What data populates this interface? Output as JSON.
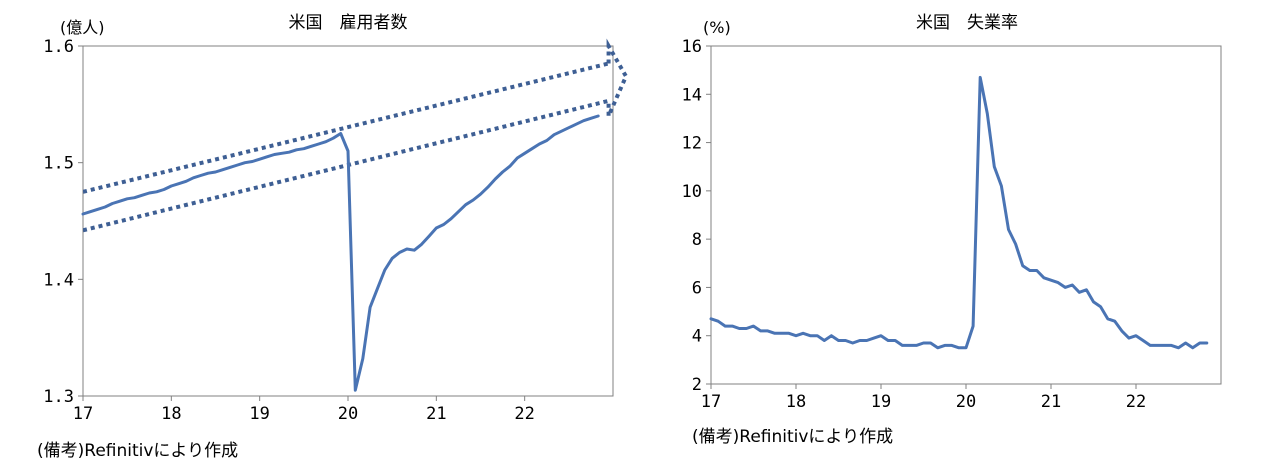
{
  "chart_data": [
    {
      "type": "line",
      "title": "米国　雇用者数",
      "unit_label": "(億人)",
      "source": "(備考)Refinitivにより作成",
      "xlabel": "",
      "ylabel": "(億人)",
      "ylim": [
        1.3,
        1.6
      ],
      "xlim": [
        17,
        23.0
      ],
      "y_ticks": [
        "1.3",
        "1.4",
        "1.5",
        "1.6"
      ],
      "x_ticks": [
        "17",
        "18",
        "19",
        "20",
        "21",
        "22"
      ],
      "series": [
        {
          "name": "雇用者数",
          "color": "#4a74b4",
          "x": [
            17.0,
            17.083,
            17.167,
            17.25,
            17.333,
            17.417,
            17.5,
            17.583,
            17.667,
            17.75,
            17.833,
            17.917,
            18.0,
            18.083,
            18.167,
            18.25,
            18.333,
            18.417,
            18.5,
            18.583,
            18.667,
            18.75,
            18.833,
            18.917,
            19.0,
            19.083,
            19.167,
            19.25,
            19.333,
            19.417,
            19.5,
            19.583,
            19.667,
            19.75,
            19.833,
            19.917,
            20.0,
            20.083,
            20.167,
            20.25,
            20.333,
            20.417,
            20.5,
            20.583,
            20.667,
            20.75,
            20.833,
            20.917,
            21.0,
            21.083,
            21.167,
            21.25,
            21.333,
            21.417,
            21.5,
            21.583,
            21.667,
            21.75,
            21.833,
            21.917,
            22.0,
            22.083,
            22.167,
            22.25,
            22.333,
            22.417,
            22.5,
            22.583,
            22.667,
            22.75,
            22.833
          ],
          "values": [
            1.456,
            1.458,
            1.46,
            1.462,
            1.465,
            1.467,
            1.469,
            1.47,
            1.472,
            1.474,
            1.475,
            1.477,
            1.48,
            1.482,
            1.484,
            1.487,
            1.489,
            1.491,
            1.492,
            1.494,
            1.496,
            1.498,
            1.5,
            1.501,
            1.503,
            1.505,
            1.507,
            1.508,
            1.509,
            1.511,
            1.512,
            1.514,
            1.516,
            1.518,
            1.521,
            1.525,
            1.51,
            1.305,
            1.332,
            1.376,
            1.392,
            1.408,
            1.418,
            1.423,
            1.426,
            1.425,
            1.43,
            1.437,
            1.444,
            1.447,
            1.452,
            1.458,
            1.464,
            1.468,
            1.473,
            1.479,
            1.486,
            1.492,
            1.497,
            1.504,
            1.508,
            1.512,
            1.516,
            1.519,
            1.524,
            1.527,
            1.53,
            1.533,
            1.536,
            1.538,
            1.54
          ]
        }
      ],
      "annotation": "dotted trend band (pre-COVID trend extrapolation)"
    },
    {
      "type": "line",
      "title": "米国　失業率",
      "unit_label": "(%)",
      "source": "(備考)Refinitivにより作成",
      "xlabel": "",
      "ylabel": "(%)",
      "ylim": [
        2,
        16
      ],
      "xlim": [
        17,
        23.0
      ],
      "y_ticks": [
        "2",
        "4",
        "6",
        "8",
        "10",
        "12",
        "14",
        "16"
      ],
      "x_ticks": [
        "17",
        "18",
        "19",
        "20",
        "21",
        "22"
      ],
      "series": [
        {
          "name": "失業率",
          "color": "#4a74b4",
          "x": [
            17.0,
            17.083,
            17.167,
            17.25,
            17.333,
            17.417,
            17.5,
            17.583,
            17.667,
            17.75,
            17.833,
            17.917,
            18.0,
            18.083,
            18.167,
            18.25,
            18.333,
            18.417,
            18.5,
            18.583,
            18.667,
            18.75,
            18.833,
            18.917,
            19.0,
            19.083,
            19.167,
            19.25,
            19.333,
            19.417,
            19.5,
            19.583,
            19.667,
            19.75,
            19.833,
            19.917,
            20.0,
            20.083,
            20.167,
            20.25,
            20.333,
            20.417,
            20.5,
            20.583,
            20.667,
            20.75,
            20.833,
            20.917,
            21.0,
            21.083,
            21.167,
            21.25,
            21.333,
            21.417,
            21.5,
            21.583,
            21.667,
            21.75,
            21.833,
            21.917,
            22.0,
            22.083,
            22.167,
            22.25,
            22.333,
            22.417,
            22.5,
            22.583,
            22.667,
            22.75,
            22.833
          ],
          "values": [
            4.7,
            4.6,
            4.4,
            4.4,
            4.3,
            4.3,
            4.4,
            4.2,
            4.2,
            4.1,
            4.1,
            4.1,
            4.0,
            4.1,
            4.0,
            4.0,
            3.8,
            4.0,
            3.8,
            3.8,
            3.7,
            3.8,
            3.8,
            3.9,
            4.0,
            3.8,
            3.8,
            3.6,
            3.6,
            3.6,
            3.7,
            3.7,
            3.5,
            3.6,
            3.6,
            3.5,
            3.5,
            4.4,
            14.7,
            13.2,
            11.0,
            10.2,
            8.4,
            7.8,
            6.9,
            6.7,
            6.7,
            6.4,
            6.3,
            6.2,
            6.0,
            6.1,
            5.8,
            5.9,
            5.4,
            5.2,
            4.7,
            4.6,
            4.2,
            3.9,
            4.0,
            3.8,
            3.6,
            3.6,
            3.6,
            3.6,
            3.5,
            3.7,
            3.5,
            3.7,
            3.7
          ]
        }
      ]
    }
  ]
}
